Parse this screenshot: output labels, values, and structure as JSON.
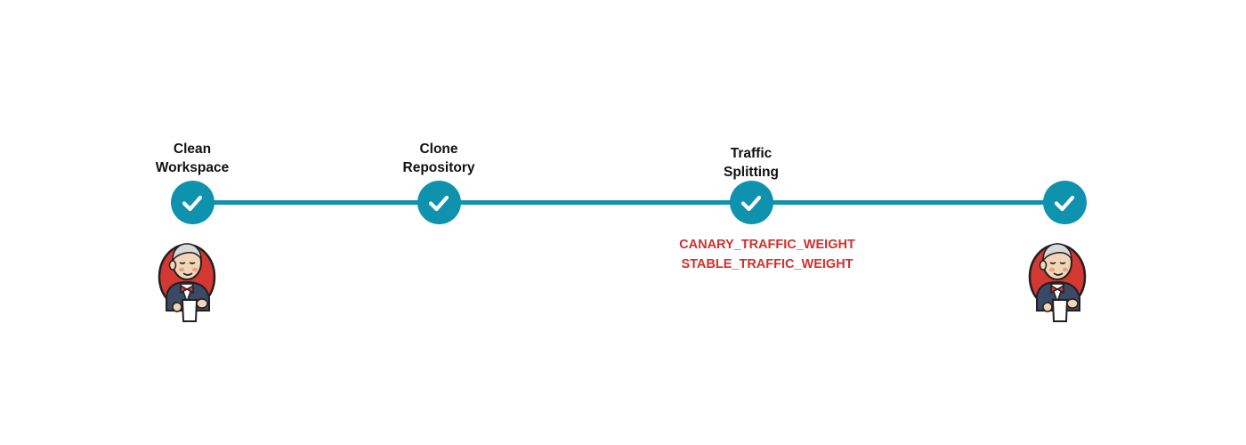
{
  "pipeline": {
    "stages": [
      {
        "label": "Clean\nWorkspace",
        "status": "success"
      },
      {
        "label": "Clone\nRepository",
        "status": "success"
      },
      {
        "label": "Traffic\nSplitting",
        "status": "success"
      },
      {
        "label": "",
        "status": "success"
      }
    ],
    "parameters": [
      "CANARY_TRAFFIC_WEIGHT",
      "STABLE_TRAFFIC_WEIGHT"
    ]
  },
  "icons": {
    "stage_status": "check-icon",
    "mascot": "jenkins-butler-icon"
  },
  "colors": {
    "accent": "#0e92ad",
    "parameter_text": "#d1302d",
    "label_text": "#111111",
    "mascot_red": "#d33833"
  }
}
